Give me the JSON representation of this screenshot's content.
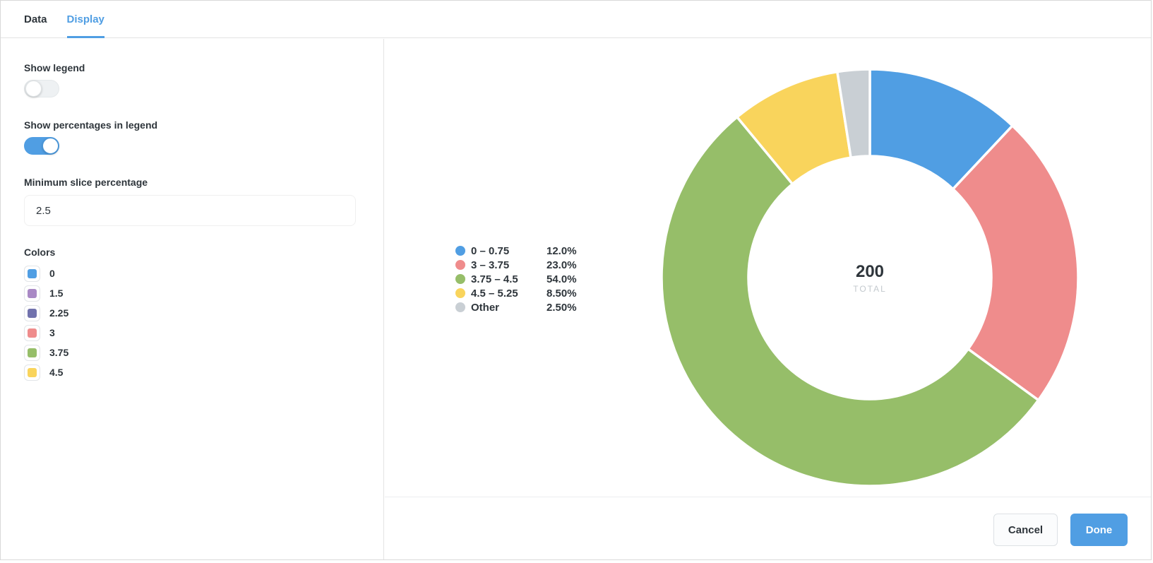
{
  "tabs": [
    {
      "label": "Data",
      "active": false
    },
    {
      "label": "Display",
      "active": true
    }
  ],
  "settings": {
    "show_legend": {
      "label": "Show legend",
      "value": false
    },
    "show_percentages": {
      "label": "Show percentages in legend",
      "value": true
    },
    "min_slice": {
      "label": "Minimum slice percentage",
      "value": "2.5"
    },
    "colors": {
      "label": "Colors",
      "items": [
        {
          "label": "0",
          "color": "#509EE3"
        },
        {
          "label": "1.5",
          "color": "#A989C5"
        },
        {
          "label": "2.25",
          "color": "#7172AD"
        },
        {
          "label": "3",
          "color": "#EF8C8C"
        },
        {
          "label": "3.75",
          "color": "#96BE69"
        },
        {
          "label": "4.5",
          "color": "#F9D45C"
        }
      ]
    }
  },
  "chart_data": {
    "type": "pie",
    "total_value": "200",
    "total_label": "TOTAL",
    "legend_position": "left",
    "donut": {
      "outer_radius": 295,
      "inner_radius": 172,
      "start_angle_deg": 0,
      "direction": "clockwise"
    },
    "slices": [
      {
        "label": "0 – 0.75",
        "value": 12.0,
        "pct_label": "12.0%",
        "color": "#509EE3"
      },
      {
        "label": "3 – 3.75",
        "value": 23.0,
        "pct_label": "23.0%",
        "color": "#EF8C8C"
      },
      {
        "label": "3.75 – 4.5",
        "value": 54.0,
        "pct_label": "54.0%",
        "color": "#96BE69"
      },
      {
        "label": "4.5 – 5.25",
        "value": 8.5,
        "pct_label": "8.50%",
        "color": "#F9D45C"
      },
      {
        "label": "Other",
        "value": 2.5,
        "pct_label": "2.50%",
        "color": "#C9CFD4"
      }
    ]
  },
  "footer": {
    "cancel_label": "Cancel",
    "done_label": "Done"
  },
  "colors": {
    "accent": "#509EE3",
    "text_dark": "#2E353B",
    "muted": "#C3C9CE"
  }
}
